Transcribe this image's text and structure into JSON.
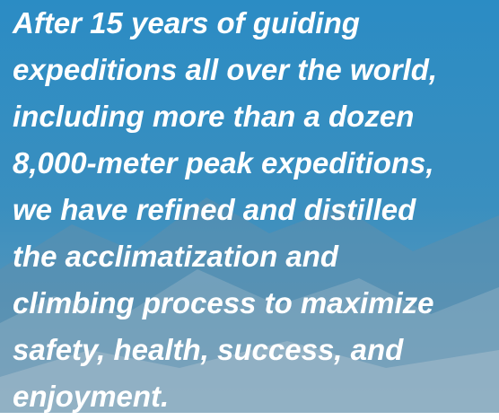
{
  "paragraph": {
    "lines": [
      "After 15 years of guiding",
      "expeditions all over the world,",
      "including more than a dozen",
      "8,000-meter peak expeditions,",
      "we have refined and distilled",
      "the acclimatization and",
      "climbing process to maximize",
      "safety, health, success, and",
      "enjoyment."
    ]
  }
}
